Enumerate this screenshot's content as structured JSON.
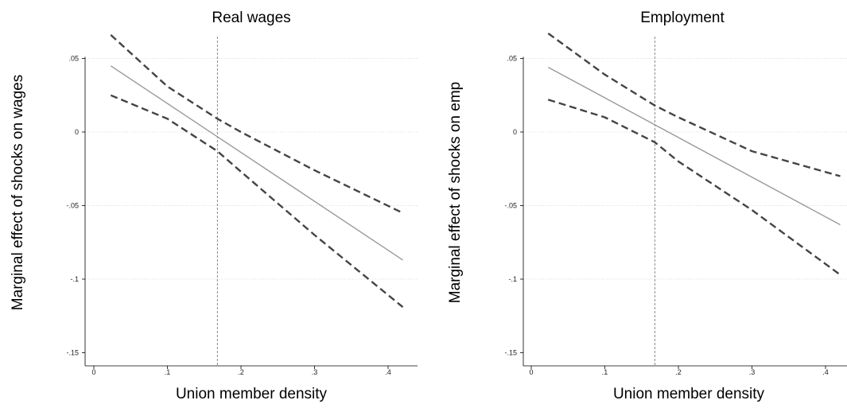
{
  "chart_data": [
    {
      "type": "line",
      "title": "Real wages",
      "xlabel": "Union member density",
      "ylabel": "Marginal effect of shocks on wages",
      "xlim": [
        0,
        0.42
      ],
      "ylim": [
        -0.15,
        0.05
      ],
      "x_ticks": [
        0,
        0.1,
        0.2,
        0.3,
        0.4
      ],
      "x_tick_labels": [
        "0",
        ".1",
        ".2",
        ".3",
        ".4"
      ],
      "y_ticks": [
        -0.15,
        -0.1,
        -0.05,
        0,
        0.05
      ],
      "y_tick_labels": [
        "-.15",
        "-.1",
        "-.05",
        "0",
        ".05"
      ],
      "grid": true,
      "reference_x": 0.168,
      "series": [
        {
          "role": "estimate",
          "style": "solid",
          "color": "#999999",
          "x": [
            0.023,
            0.42
          ],
          "y": [
            0.045,
            -0.087
          ]
        },
        {
          "role": "upper",
          "style": "dashed",
          "color": "#444444",
          "x": [
            0.023,
            0.1,
            0.168,
            0.2,
            0.3,
            0.42
          ],
          "y": [
            0.066,
            0.031,
            0.009,
            0.0,
            -0.026,
            -0.055
          ]
        },
        {
          "role": "lower",
          "style": "dashed",
          "color": "#444444",
          "x": [
            0.023,
            0.1,
            0.168,
            0.2,
            0.3,
            0.42
          ],
          "y": [
            0.025,
            0.009,
            -0.013,
            -0.027,
            -0.07,
            -0.119
          ]
        }
      ]
    },
    {
      "type": "line",
      "title": "Employment",
      "xlabel": "Union member density",
      "ylabel": "Marginal effect of shocks on emp",
      "xlim": [
        0,
        0.42
      ],
      "ylim": [
        -0.15,
        0.05
      ],
      "x_ticks": [
        0,
        0.1,
        0.2,
        0.3,
        0.4
      ],
      "x_tick_labels": [
        "0",
        ".1",
        ".2",
        ".3",
        ".4"
      ],
      "y_ticks": [
        -0.15,
        -0.1,
        -0.05,
        0,
        0.05
      ],
      "y_tick_labels": [
        "-.15",
        "-.1",
        "-.05",
        "0",
        ".05"
      ],
      "grid": true,
      "reference_x": 0.168,
      "series": [
        {
          "role": "estimate",
          "style": "solid",
          "color": "#999999",
          "x": [
            0.023,
            0.42
          ],
          "y": [
            0.044,
            -0.063
          ]
        },
        {
          "role": "upper",
          "style": "dashed",
          "color": "#444444",
          "x": [
            0.023,
            0.1,
            0.168,
            0.2,
            0.3,
            0.42
          ],
          "y": [
            0.067,
            0.039,
            0.018,
            0.01,
            -0.013,
            -0.03
          ]
        },
        {
          "role": "lower",
          "style": "dashed",
          "color": "#444444",
          "x": [
            0.023,
            0.1,
            0.168,
            0.2,
            0.3,
            0.42
          ],
          "y": [
            0.022,
            0.01,
            -0.007,
            -0.02,
            -0.053,
            -0.097
          ]
        }
      ]
    }
  ]
}
